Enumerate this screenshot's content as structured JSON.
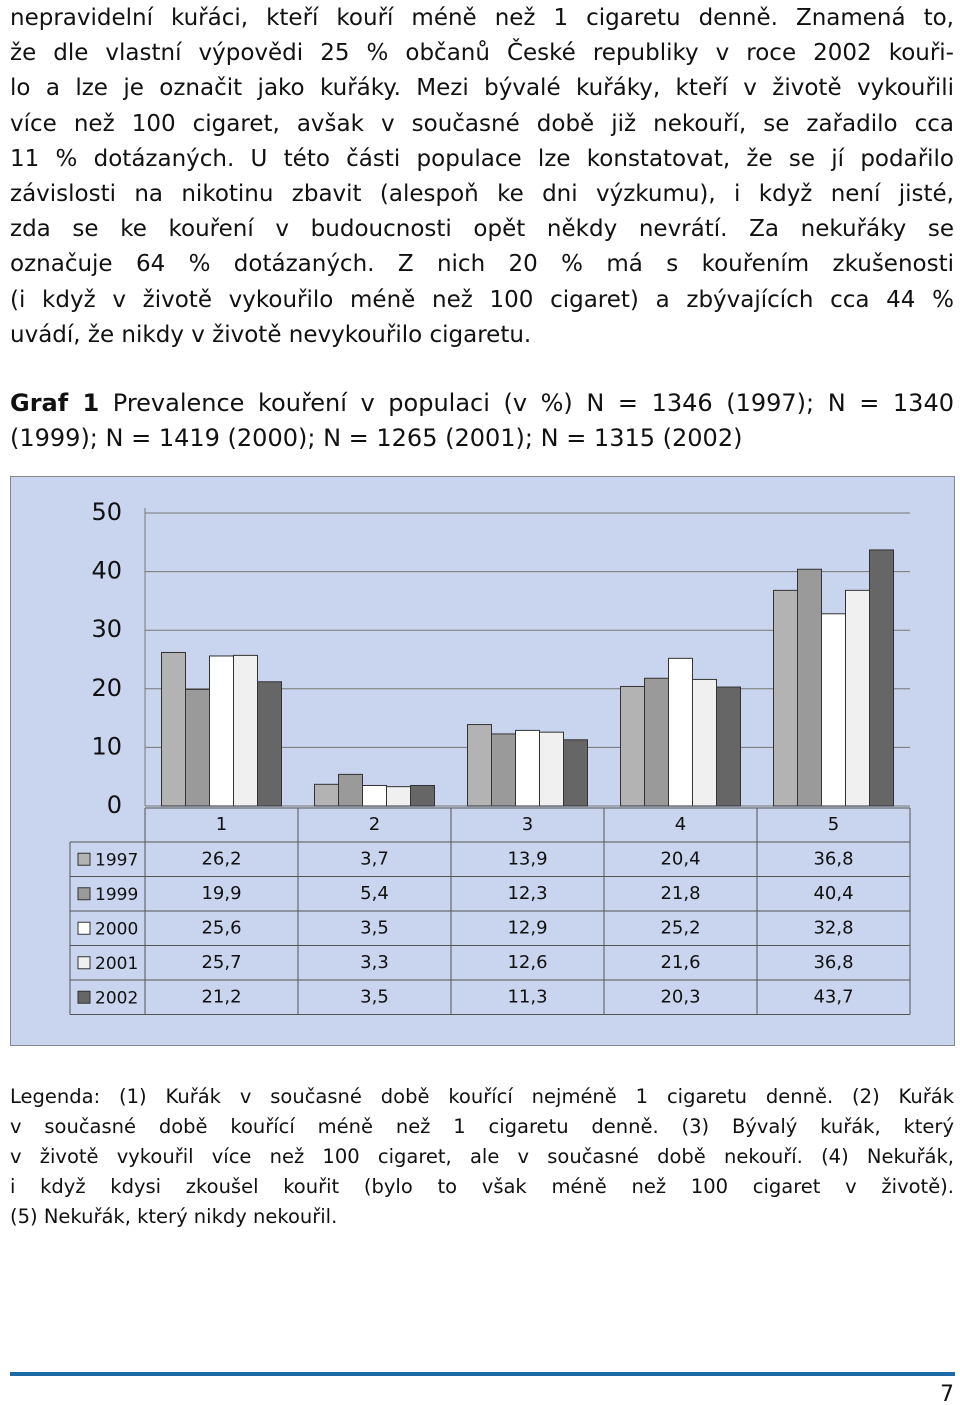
{
  "body_lines": [
    "nepravidelní kuřáci, kteří kouří méně než 1 cigaretu denně. Znamená to,",
    "že dle vlastní výpovědi 25 % občanů České republiky v roce 2002 kouři-",
    "lo a lze je označit jako kuřáky. Mezi bývalé kuřáky, kteří v životě vykouřili",
    "více než 100 cigaret, avšak v současné době již nekouří, se zařadilo cca",
    "11 % dotázaných. U této části populace lze konstatovat, že se jí podařilo",
    "závislosti na nikotinu zbavit (alespoň ke dni výzkumu), i když není jisté,",
    "zda se ke kouření v budoucnosti opět někdy nevrátí. Za nekuřáky se",
    "označuje 64 % dotázaných. Z nich 20 % má s kouřením zkušenosti",
    "(i když v životě vykouřilo méně než 100 cigaret) a zbývajících cca 44 %",
    "uvádí, že nikdy v životě nevykouřilo cigaretu."
  ],
  "caption": {
    "label": "Graf 1",
    "text": "Prevalence kouření v populaci (v %) N = 1346 (1997); N = 1340 (1999); N = 1419 (2000); N = 1265 (2001); N = 1315 (2002)"
  },
  "chart_data": {
    "type": "bar",
    "categories": [
      "1",
      "2",
      "3",
      "4",
      "5"
    ],
    "series": [
      {
        "name": "1997",
        "color": "#b3b3b3",
        "values": [
          26.2,
          3.7,
          13.9,
          20.4,
          36.8
        ],
        "value_labels": [
          "26,2",
          "3,7",
          "13,9",
          "20,4",
          "36,8"
        ]
      },
      {
        "name": "1999",
        "color": "#9a9a9a",
        "values": [
          19.9,
          5.4,
          12.3,
          21.8,
          40.4
        ],
        "value_labels": [
          "19,9",
          "5,4",
          "12,3",
          "21,8",
          "40,4"
        ]
      },
      {
        "name": "2000",
        "color": "#ffffff",
        "values": [
          25.6,
          3.5,
          12.9,
          25.2,
          32.8
        ],
        "value_labels": [
          "25,6",
          "3,5",
          "12,9",
          "25,2",
          "32,8"
        ]
      },
      {
        "name": "2001",
        "color": "#f0f0f0",
        "values": [
          25.7,
          3.3,
          12.6,
          21.6,
          36.8
        ],
        "value_labels": [
          "25,7",
          "3,3",
          "12,6",
          "21,6",
          "36,8"
        ]
      },
      {
        "name": "2002",
        "color": "#666666",
        "values": [
          21.2,
          3.5,
          11.3,
          20.3,
          43.7
        ],
        "value_labels": [
          "21,2",
          "3,5",
          "11,3",
          "20,3",
          "43,7"
        ]
      }
    ],
    "ylim": [
      0,
      50
    ],
    "yticks": [
      0,
      10,
      20,
      30,
      40,
      50
    ],
    "grid": true
  },
  "legend_lines": [
    "Legenda: (1) Kuřák v současné době kouřící nejméně 1 cigaretu denně. (2) Kuřák",
    "v současné době kouřící méně než 1 cigaretu denně. (3) Bývalý kuřák, který",
    "v životě vykouřil více než 100 cigaret, ale v současné době nekouří. (4) Nekuřák,",
    "i když kdysi zkoušel kouřit (bylo to však méně než 100 cigaret v životě).",
    "(5) Nekuřák, který nikdy nekouřil."
  ],
  "page_number": "7"
}
